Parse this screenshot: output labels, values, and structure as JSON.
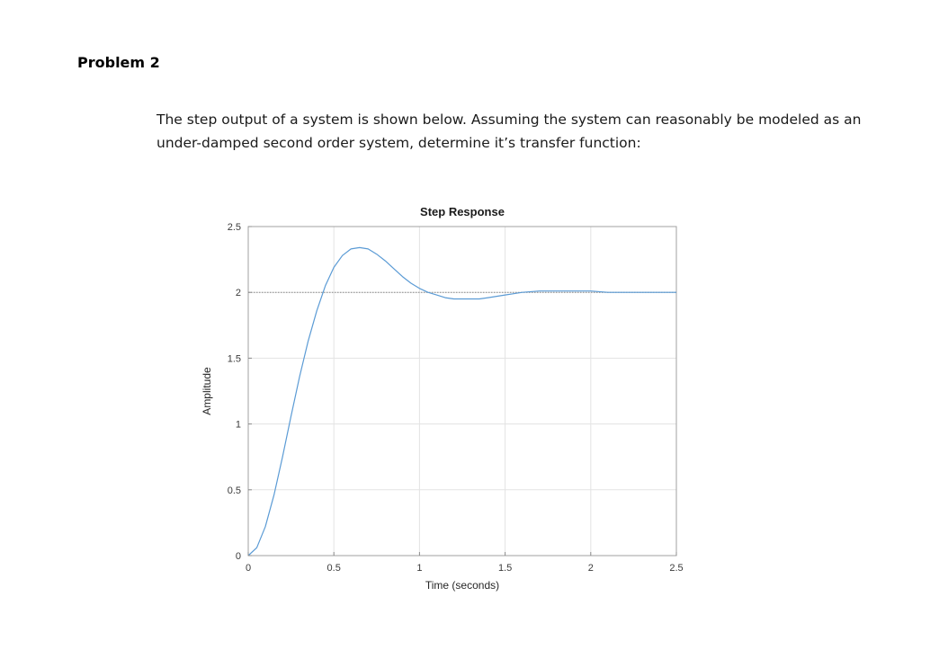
{
  "document": {
    "heading": "Problem 2",
    "body_line_1": "The step output of a system is shown below.  Assuming the system can reasonably be modeled as an",
    "body_line_2": "under-damped second order system, determine it’s transfer function:"
  },
  "chart_data": {
    "type": "line",
    "title": "Step Response",
    "xlabel": "Time (seconds)",
    "ylabel": "Amplitude",
    "xlim": [
      0,
      2.5
    ],
    "ylim": [
      0,
      2.5
    ],
    "x_ticks": [
      "0",
      "0.5",
      "1",
      "1.5",
      "2",
      "2.5"
    ],
    "y_ticks": [
      "0",
      "0.5",
      "1",
      "1.5",
      "2",
      "2.5"
    ],
    "grid": true,
    "steady_state_reference": 2,
    "series": [
      {
        "color": "#5b9bd5",
        "x": [
          0,
          0.05,
          0.1,
          0.15,
          0.2,
          0.25,
          0.3,
          0.35,
          0.4,
          0.45,
          0.5,
          0.55,
          0.6,
          0.65,
          0.7,
          0.75,
          0.8,
          0.85,
          0.9,
          0.95,
          1.0,
          1.05,
          1.1,
          1.15,
          1.2,
          1.25,
          1.3,
          1.35,
          1.4,
          1.45,
          1.5,
          1.55,
          1.6,
          1.7,
          1.8,
          1.9,
          2.0,
          2.1,
          2.2,
          2.3,
          2.4,
          2.5
        ],
        "y": [
          0,
          0.06,
          0.22,
          0.46,
          0.75,
          1.06,
          1.36,
          1.63,
          1.86,
          2.05,
          2.19,
          2.28,
          2.33,
          2.34,
          2.33,
          2.29,
          2.24,
          2.18,
          2.12,
          2.07,
          2.03,
          2.0,
          1.98,
          1.96,
          1.95,
          1.95,
          1.95,
          1.95,
          1.96,
          1.97,
          1.98,
          1.99,
          2.0,
          2.01,
          2.01,
          2.01,
          2.01,
          2.0,
          2.0,
          2.0,
          2.0,
          2.0
        ]
      }
    ]
  }
}
